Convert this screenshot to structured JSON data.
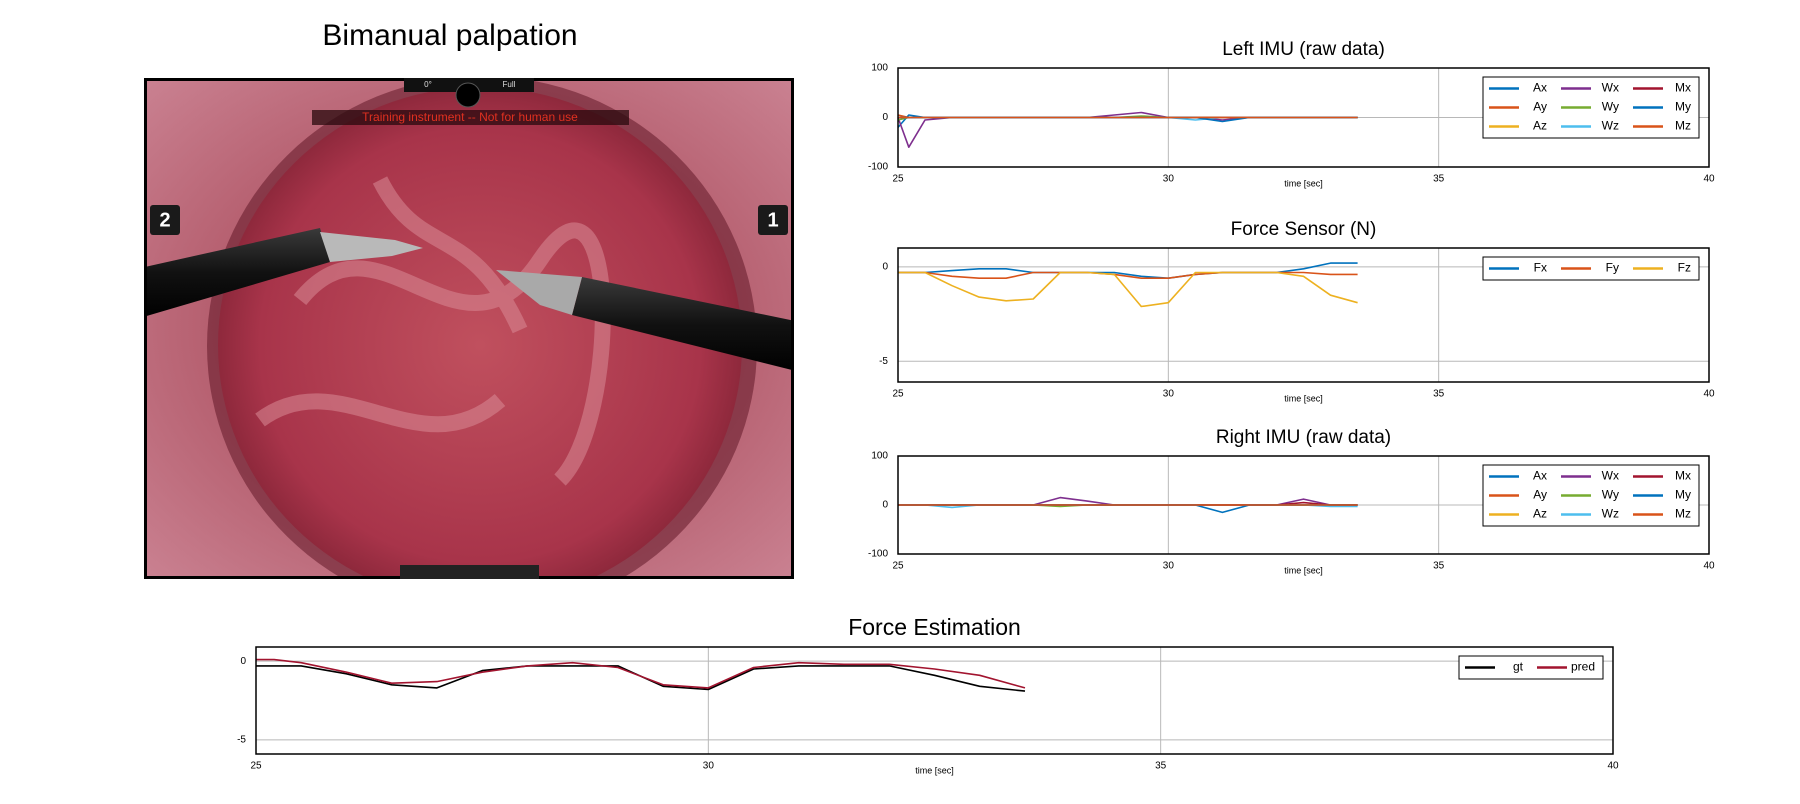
{
  "video": {
    "title": "Bimanual palpation",
    "angle": "0°",
    "zoom": "Full",
    "warning": "Training instrument -- Not for human use",
    "left_arm": "2",
    "right_arm": "1"
  },
  "chart_data": [
    {
      "type": "line",
      "title": "Left IMU (raw data)",
      "xlabel": "time [sec]",
      "xlim": [
        25,
        40
      ],
      "xticks": [
        25,
        30,
        35,
        40
      ],
      "ylim": [
        -100,
        100
      ],
      "yticks": [
        -100,
        0,
        100
      ],
      "grid": true,
      "legend": "upper right",
      "x": [
        25,
        25.2,
        25.5,
        26,
        26.5,
        27,
        27.5,
        28,
        28.5,
        29,
        29.5,
        30,
        30.5,
        31,
        31.5,
        32,
        32.5,
        33,
        33.5
      ],
      "series": [
        {
          "name": "Ax",
          "color": "#0072bd",
          "values": [
            -20,
            5,
            0,
            0,
            0,
            0,
            0,
            0,
            0,
            0,
            0,
            0,
            0,
            0,
            0,
            0,
            0,
            0,
            0
          ]
        },
        {
          "name": "Ay",
          "color": "#d95319",
          "values": [
            5,
            0,
            0,
            0,
            0,
            0,
            0,
            0,
            0,
            0,
            0,
            0,
            0,
            0,
            0,
            0,
            0,
            0,
            0
          ]
        },
        {
          "name": "Az",
          "color": "#edb120",
          "values": [
            0,
            0,
            0,
            0,
            0,
            0,
            0,
            0,
            0,
            0,
            0,
            0,
            0,
            0,
            0,
            0,
            0,
            0,
            0
          ]
        },
        {
          "name": "Wx",
          "color": "#7e2f8e",
          "values": [
            0,
            -60,
            -5,
            0,
            0,
            0,
            0,
            0,
            0,
            5,
            10,
            0,
            0,
            -5,
            0,
            0,
            0,
            0,
            0
          ]
        },
        {
          "name": "Wy",
          "color": "#77ac30",
          "values": [
            -5,
            0,
            0,
            0,
            0,
            0,
            0,
            0,
            0,
            0,
            3,
            0,
            0,
            0,
            0,
            0,
            0,
            0,
            0
          ]
        },
        {
          "name": "Wz",
          "color": "#4dbeee",
          "values": [
            0,
            0,
            0,
            0,
            0,
            0,
            0,
            0,
            0,
            0,
            0,
            0,
            -5,
            0,
            0,
            0,
            0,
            0,
            0
          ]
        },
        {
          "name": "Mx",
          "color": "#a2142f",
          "values": [
            0,
            0,
            0,
            0,
            0,
            0,
            0,
            0,
            0,
            0,
            0,
            0,
            0,
            0,
            0,
            0,
            0,
            0,
            0
          ]
        },
        {
          "name": "My",
          "color": "#0072bd",
          "values": [
            0,
            0,
            0,
            0,
            0,
            0,
            0,
            0,
            0,
            0,
            0,
            0,
            0,
            -8,
            0,
            0,
            0,
            0,
            0
          ]
        },
        {
          "name": "Mz",
          "color": "#d95319",
          "values": [
            0,
            0,
            0,
            0,
            0,
            0,
            0,
            0,
            0,
            0,
            0,
            0,
            0,
            0,
            0,
            0,
            0,
            0,
            0
          ]
        }
      ]
    },
    {
      "type": "line",
      "title": "Force Sensor (N)",
      "xlabel": "time [sec]",
      "xlim": [
        25,
        40
      ],
      "xticks": [
        25,
        30,
        35,
        40
      ],
      "ylim": [
        -6.1,
        1
      ],
      "yticks": [
        -5,
        0
      ],
      "grid": true,
      "legend": "upper right",
      "x": [
        25,
        25.2,
        25.5,
        26,
        26.5,
        27,
        27.5,
        28,
        28.5,
        29,
        29.5,
        30,
        30.5,
        31,
        31.5,
        32,
        32.5,
        33,
        33.5
      ],
      "series": [
        {
          "name": "Fx",
          "color": "#0072bd",
          "values": [
            -0.3,
            -0.3,
            -0.3,
            -0.2,
            -0.1,
            -0.1,
            -0.3,
            -0.3,
            -0.3,
            -0.3,
            -0.5,
            -0.6,
            -0.4,
            -0.3,
            -0.3,
            -0.3,
            -0.1,
            0.2,
            0.2
          ]
        },
        {
          "name": "Fy",
          "color": "#d95319",
          "values": [
            -0.3,
            -0.3,
            -0.3,
            -0.5,
            -0.6,
            -0.6,
            -0.3,
            -0.3,
            -0.3,
            -0.4,
            -0.6,
            -0.6,
            -0.4,
            -0.3,
            -0.3,
            -0.3,
            -0.3,
            -0.4,
            -0.4
          ]
        },
        {
          "name": "Fz",
          "color": "#edb120",
          "values": [
            -0.3,
            -0.3,
            -0.3,
            -1.0,
            -1.6,
            -1.8,
            -1.7,
            -0.3,
            -0.3,
            -0.4,
            -2.1,
            -1.9,
            -0.3,
            -0.3,
            -0.3,
            -0.3,
            -0.5,
            -1.5,
            -1.9
          ]
        }
      ]
    },
    {
      "type": "line",
      "title": "Right IMU (raw data)",
      "xlabel": "time [sec]",
      "xlim": [
        25,
        40
      ],
      "xticks": [
        25,
        30,
        35,
        40
      ],
      "ylim": [
        -100,
        100
      ],
      "yticks": [
        -100,
        0,
        100
      ],
      "grid": true,
      "legend": "upper right",
      "x": [
        25,
        25.2,
        25.5,
        26,
        26.5,
        27,
        27.5,
        28,
        28.5,
        29,
        29.5,
        30,
        30.5,
        31,
        31.5,
        32,
        32.5,
        33,
        33.5
      ],
      "series": [
        {
          "name": "Ax",
          "color": "#0072bd",
          "values": [
            0,
            0,
            0,
            0,
            0,
            0,
            0,
            0,
            0,
            0,
            0,
            0,
            0,
            0,
            0,
            0,
            0,
            0,
            0
          ]
        },
        {
          "name": "Ay",
          "color": "#d95319",
          "values": [
            0,
            0,
            0,
            0,
            0,
            0,
            0,
            0,
            0,
            0,
            0,
            0,
            0,
            0,
            0,
            0,
            0,
            0,
            0
          ]
        },
        {
          "name": "Az",
          "color": "#edb120",
          "values": [
            0,
            0,
            0,
            0,
            0,
            0,
            0,
            0,
            0,
            0,
            0,
            0,
            0,
            0,
            0,
            0,
            0,
            0,
            0
          ]
        },
        {
          "name": "Wx",
          "color": "#7e2f8e",
          "values": [
            0,
            0,
            0,
            0,
            0,
            0,
            0,
            15,
            8,
            0,
            0,
            0,
            0,
            0,
            0,
            0,
            12,
            0,
            0
          ]
        },
        {
          "name": "Wy",
          "color": "#77ac30",
          "values": [
            0,
            0,
            0,
            0,
            0,
            0,
            0,
            -3,
            0,
            0,
            0,
            0,
            0,
            0,
            0,
            0,
            0,
            0,
            0
          ]
        },
        {
          "name": "Wz",
          "color": "#4dbeee",
          "values": [
            0,
            0,
            0,
            -5,
            0,
            0,
            0,
            0,
            0,
            0,
            0,
            0,
            0,
            0,
            0,
            0,
            0,
            -3,
            -3
          ]
        },
        {
          "name": "Mx",
          "color": "#a2142f",
          "values": [
            0,
            0,
            0,
            0,
            0,
            0,
            0,
            0,
            0,
            0,
            0,
            0,
            0,
            0,
            0,
            0,
            5,
            0,
            0
          ]
        },
        {
          "name": "My",
          "color": "#0072bd",
          "values": [
            0,
            0,
            0,
            0,
            0,
            0,
            0,
            0,
            0,
            0,
            0,
            0,
            0,
            -15,
            0,
            0,
            0,
            0,
            0
          ]
        },
        {
          "name": "Mz",
          "color": "#d95319",
          "values": [
            0,
            0,
            0,
            0,
            0,
            0,
            0,
            0,
            0,
            0,
            0,
            0,
            0,
            0,
            0,
            0,
            0,
            0,
            0
          ]
        }
      ]
    },
    {
      "type": "line",
      "title": "Force Estimation",
      "xlabel": "time [sec]",
      "xlim": [
        25,
        40
      ],
      "xticks": [
        25,
        30,
        35,
        40
      ],
      "ylim": [
        -5.9,
        0.9
      ],
      "yticks": [
        -5,
        0
      ],
      "grid": true,
      "legend": "upper right",
      "x": [
        25,
        25.2,
        25.5,
        26,
        26.5,
        27,
        27.5,
        28,
        28.5,
        29,
        29.5,
        30,
        30.5,
        31,
        31.5,
        32,
        32.5,
        33,
        33.5
      ],
      "series": [
        {
          "name": "gt",
          "color": "#000000",
          "values": [
            -0.3,
            -0.3,
            -0.3,
            -0.8,
            -1.5,
            -1.7,
            -0.6,
            -0.3,
            -0.3,
            -0.3,
            -1.6,
            -1.8,
            -0.5,
            -0.3,
            -0.3,
            -0.3,
            -0.9,
            -1.6,
            -1.9
          ]
        },
        {
          "name": "pred",
          "color": "#a2142f",
          "values": [
            0.1,
            0.1,
            -0.1,
            -0.7,
            -1.4,
            -1.3,
            -0.7,
            -0.3,
            -0.1,
            -0.4,
            -1.5,
            -1.7,
            -0.4,
            -0.1,
            -0.2,
            -0.2,
            -0.5,
            -0.9,
            -1.7
          ]
        }
      ]
    }
  ]
}
